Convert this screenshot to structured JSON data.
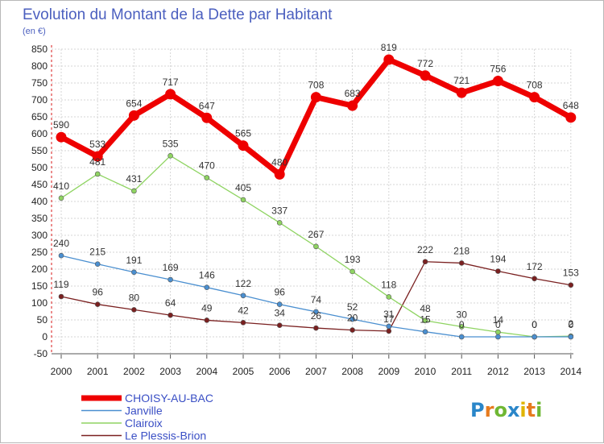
{
  "chart_data": {
    "type": "line",
    "title": "Evolution du Montant de la Dette par Habitant",
    "subtitle": "(en €)",
    "xlabel": "",
    "ylabel": "",
    "x": [
      "2000",
      "2001",
      "2002",
      "2003",
      "2004",
      "2005",
      "2006",
      "2007",
      "2008",
      "2009",
      "2010",
      "2011",
      "2012",
      "2013",
      "2014"
    ],
    "ylim": [
      -50,
      850
    ],
    "yticks": [
      "-50",
      "0",
      "50",
      "100",
      "150",
      "200",
      "250",
      "300",
      "350",
      "400",
      "450",
      "500",
      "550",
      "600",
      "650",
      "700",
      "750",
      "800",
      "850"
    ],
    "grid": true,
    "legend": "bottom-left",
    "series": [
      {
        "name": "CHOISY-AU-BAC",
        "color": "#ee0000",
        "values": [
          590,
          533,
          654,
          717,
          647,
          565,
          480,
          708,
          683,
          819,
          772,
          721,
          756,
          708,
          648
        ],
        "labels": [
          "590",
          "533",
          "654",
          "717",
          "647",
          "565",
          "480",
          "708",
          "683",
          "819",
          "772",
          "721",
          "756",
          "708",
          "648"
        ]
      },
      {
        "name": "Janville",
        "color": "#4a8fd0",
        "values": [
          240,
          215,
          191,
          169,
          146,
          122,
          96,
          74,
          52,
          31,
          15,
          0,
          0,
          0,
          0
        ],
        "labels": [
          "240",
          "215",
          "191",
          "169",
          "146",
          "122",
          "96",
          "74",
          "52",
          "31",
          "15",
          "0",
          "0",
          "0",
          "0"
        ]
      },
      {
        "name": "Clairoix",
        "color": "#8fd462",
        "values": [
          410,
          481,
          431,
          535,
          470,
          405,
          337,
          267,
          193,
          118,
          48,
          30,
          14,
          0,
          2
        ],
        "labels": [
          "410",
          "481",
          "431",
          "535",
          "470",
          "405",
          "337",
          "267",
          "193",
          "118",
          "48",
          "30",
          "14",
          "0",
          "2"
        ]
      },
      {
        "name": "Le Plessis-Brion",
        "color": "#7a2020",
        "values": [
          119,
          96,
          80,
          64,
          49,
          42,
          34,
          26,
          20,
          17,
          222,
          218,
          194,
          172,
          153
        ],
        "labels": [
          "119",
          "96",
          "80",
          "64",
          "49",
          "42",
          "34",
          "26",
          "20",
          "17",
          "222",
          "218",
          "194",
          "172",
          "153"
        ]
      }
    ]
  },
  "logo": {
    "text": "Proxiti",
    "letters": [
      "P",
      "r",
      "o",
      "x",
      "i",
      "t",
      "i"
    ],
    "colors": [
      "#2a86c9",
      "#e77b1e",
      "#6fb733",
      "#2a86c9",
      "#e0b400",
      "#e77b1e",
      "#6fb733"
    ]
  }
}
